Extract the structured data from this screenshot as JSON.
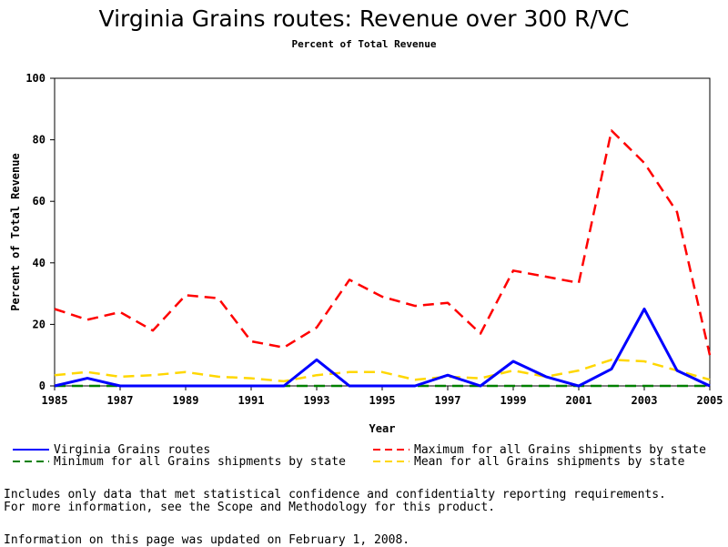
{
  "chart_data": {
    "type": "line",
    "title": "Virginia Grains routes: Revenue over 300 R/VC",
    "subtitle": "Percent of Total Revenue",
    "xlabel": "Year",
    "ylabel": "Percent of Total Revenue",
    "xlim": [
      1985,
      2005
    ],
    "ylim": [
      0,
      100
    ],
    "x_ticks": [
      "1985",
      "1987",
      "1989",
      "1991",
      "1993",
      "1995",
      "1997",
      "1999",
      "2001",
      "2003",
      "2005"
    ],
    "y_ticks": [
      "0",
      "20",
      "40",
      "60",
      "80",
      "100"
    ],
    "x": [
      1985,
      1986,
      1987,
      1988,
      1989,
      1990,
      1991,
      1992,
      1993,
      1994,
      1995,
      1996,
      1997,
      1998,
      1999,
      2000,
      2001,
      2002,
      2003,
      2004,
      2005
    ],
    "grid": false,
    "legend_position": "bottom",
    "series": [
      {
        "name": "Virginia Grains routes",
        "color": "#0000ff",
        "dash": "solid",
        "values": [
          0,
          2.5,
          0,
          0,
          0,
          0,
          0,
          0,
          8.5,
          0,
          0,
          0,
          3.5,
          0,
          8,
          3,
          0,
          5.5,
          25,
          5,
          0
        ]
      },
      {
        "name": "Minimum for all Grains shipments by state",
        "color": "#008000",
        "dash": "dashed",
        "values": [
          0,
          0,
          0,
          0,
          0,
          0,
          0,
          0,
          0,
          0,
          0,
          0,
          0,
          0,
          0,
          0,
          0,
          0,
          0,
          0,
          0
        ]
      },
      {
        "name": "Maximum for all Grains shipments by state",
        "color": "#ff0000",
        "dash": "dashed",
        "values": [
          25,
          21.5,
          24,
          18,
          29.5,
          28.5,
          14.5,
          12.5,
          19,
          34.5,
          29,
          26,
          27,
          17,
          37.5,
          35.5,
          33.5,
          83,
          72.5,
          56.5,
          10
        ]
      },
      {
        "name": "Mean for all Grains shipments by state",
        "color": "#ffd700",
        "dash": "dashed",
        "values": [
          3.5,
          4.5,
          3,
          3.5,
          4.5,
          3,
          2.5,
          1.5,
          3.5,
          4.5,
          4.5,
          2,
          3,
          2.5,
          5,
          3,
          5,
          8.5,
          8,
          5,
          2
        ]
      }
    ]
  },
  "footnotes": {
    "line1": "Includes only data that met statistical confidence and confidentialty reporting requirements.",
    "line2": "For more information, see the Scope and Methodology for this product.",
    "updated": "Information on this page was updated on February 1, 2008."
  }
}
